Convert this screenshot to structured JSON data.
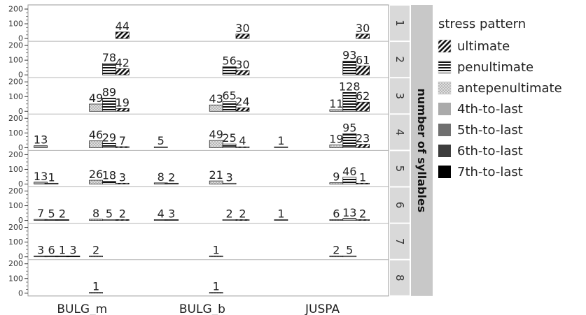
{
  "chart_data": {
    "type": "bar",
    "stacking": "none",
    "facet_columns": [
      "BULG_m",
      "BULG_b",
      "JUSPA"
    ],
    "facet_rows": [
      "1",
      "2",
      "3",
      "4",
      "5",
      "6",
      "7",
      "8"
    ],
    "facet_row_title": "number of syllables",
    "y_ticks": [
      "0",
      "100",
      "200"
    ],
    "ylim": [
      0,
      200
    ],
    "legend": {
      "title": "stress pattern",
      "position": "right",
      "entries": [
        {
          "key": "ultimate",
          "label": "ultimate",
          "fill": "diagonal-hatch"
        },
        {
          "key": "penultimate",
          "label": "penultimate",
          "fill": "horizontal-stripes"
        },
        {
          "key": "antepenultimate",
          "label": "antepenultimate",
          "fill": "dots"
        },
        {
          "key": "4th",
          "label": "4th-to-last",
          "fill": "#aaaaaa"
        },
        {
          "key": "5th",
          "label": "5th-to-last",
          "fill": "#6f6f6f"
        },
        {
          "key": "6th",
          "label": "6th-to-last",
          "fill": "#3d3d3d"
        },
        {
          "key": "7th",
          "label": "7th-to-last",
          "fill": "#000000"
        }
      ]
    },
    "bars": [
      {
        "col": "BULG_m",
        "row": "1",
        "pattern": "ultimate",
        "value": 44
      },
      {
        "col": "BULG_b",
        "row": "1",
        "pattern": "ultimate",
        "value": 30
      },
      {
        "col": "JUSPA",
        "row": "1",
        "pattern": "ultimate",
        "value": 30
      },
      {
        "col": "BULG_m",
        "row": "2",
        "pattern": "penultimate",
        "value": 78
      },
      {
        "col": "BULG_m",
        "row": "2",
        "pattern": "ultimate",
        "value": 42
      },
      {
        "col": "BULG_b",
        "row": "2",
        "pattern": "penultimate",
        "value": 56
      },
      {
        "col": "BULG_b",
        "row": "2",
        "pattern": "ultimate",
        "value": 30
      },
      {
        "col": "JUSPA",
        "row": "2",
        "pattern": "penultimate",
        "value": 93
      },
      {
        "col": "JUSPA",
        "row": "2",
        "pattern": "ultimate",
        "value": 61
      },
      {
        "col": "BULG_m",
        "row": "3",
        "pattern": "antepenultimate",
        "value": 49
      },
      {
        "col": "BULG_m",
        "row": "3",
        "pattern": "penultimate",
        "value": 89
      },
      {
        "col": "BULG_m",
        "row": "3",
        "pattern": "ultimate",
        "value": 19
      },
      {
        "col": "BULG_b",
        "row": "3",
        "pattern": "antepenultimate",
        "value": 43
      },
      {
        "col": "BULG_b",
        "row": "3",
        "pattern": "penultimate",
        "value": 65
      },
      {
        "col": "BULG_b",
        "row": "3",
        "pattern": "ultimate",
        "value": 24
      },
      {
        "col": "JUSPA",
        "row": "3",
        "pattern": "antepenultimate",
        "value": 11
      },
      {
        "col": "JUSPA",
        "row": "3",
        "pattern": "penultimate",
        "value": 128
      },
      {
        "col": "JUSPA",
        "row": "3",
        "pattern": "ultimate",
        "value": 62
      },
      {
        "col": "BULG_m",
        "row": "4",
        "pattern": "4th",
        "value": 13
      },
      {
        "col": "BULG_m",
        "row": "4",
        "pattern": "antepenultimate",
        "value": 46
      },
      {
        "col": "BULG_m",
        "row": "4",
        "pattern": "penultimate",
        "value": 29
      },
      {
        "col": "BULG_m",
        "row": "4",
        "pattern": "ultimate",
        "value": 7
      },
      {
        "col": "BULG_b",
        "row": "4",
        "pattern": "4th",
        "value": 5
      },
      {
        "col": "BULG_b",
        "row": "4",
        "pattern": "antepenultimate",
        "value": 49
      },
      {
        "col": "BULG_b",
        "row": "4",
        "pattern": "penultimate",
        "value": 25
      },
      {
        "col": "BULG_b",
        "row": "4",
        "pattern": "ultimate",
        "value": 4
      },
      {
        "col": "JUSPA",
        "row": "4",
        "pattern": "4th",
        "value": 1
      },
      {
        "col": "JUSPA",
        "row": "4",
        "pattern": "antepenultimate",
        "value": 19
      },
      {
        "col": "JUSPA",
        "row": "4",
        "pattern": "penultimate",
        "value": 95
      },
      {
        "col": "JUSPA",
        "row": "4",
        "pattern": "ultimate",
        "value": 23
      },
      {
        "col": "BULG_m",
        "row": "5",
        "pattern": "4th",
        "value": 13
      },
      {
        "col": "BULG_m",
        "row": "5",
        "pattern": "5th",
        "value": 1
      },
      {
        "col": "BULG_m",
        "row": "5",
        "pattern": "antepenultimate",
        "value": 26
      },
      {
        "col": "BULG_m",
        "row": "5",
        "pattern": "penultimate",
        "value": 18
      },
      {
        "col": "BULG_m",
        "row": "5",
        "pattern": "ultimate",
        "value": 3
      },
      {
        "col": "BULG_b",
        "row": "5",
        "pattern": "4th",
        "value": 8
      },
      {
        "col": "BULG_b",
        "row": "5",
        "pattern": "5th",
        "value": 2
      },
      {
        "col": "BULG_b",
        "row": "5",
        "pattern": "antepenultimate",
        "value": 21
      },
      {
        "col": "BULG_b",
        "row": "5",
        "pattern": "penultimate",
        "value": 3
      },
      {
        "col": "JUSPA",
        "row": "5",
        "pattern": "antepenultimate",
        "value": 9
      },
      {
        "col": "JUSPA",
        "row": "5",
        "pattern": "penultimate",
        "value": 46
      },
      {
        "col": "JUSPA",
        "row": "5",
        "pattern": "ultimate",
        "value": 1
      },
      {
        "col": "BULG_m",
        "row": "6",
        "pattern": "4th",
        "value": 7
      },
      {
        "col": "BULG_m",
        "row": "6",
        "pattern": "5th",
        "value": 5
      },
      {
        "col": "BULG_m",
        "row": "6",
        "pattern": "6th",
        "value": 2
      },
      {
        "col": "BULG_m",
        "row": "6",
        "pattern": "antepenultimate",
        "value": 8
      },
      {
        "col": "BULG_m",
        "row": "6",
        "pattern": "penultimate",
        "value": 5
      },
      {
        "col": "BULG_m",
        "row": "6",
        "pattern": "ultimate",
        "value": 2
      },
      {
        "col": "BULG_b",
        "row": "6",
        "pattern": "4th",
        "value": 4
      },
      {
        "col": "BULG_b",
        "row": "6",
        "pattern": "5th",
        "value": 3
      },
      {
        "col": "BULG_b",
        "row": "6",
        "pattern": "penultimate",
        "value": 2
      },
      {
        "col": "BULG_b",
        "row": "6",
        "pattern": "ultimate",
        "value": 2
      },
      {
        "col": "JUSPA",
        "row": "6",
        "pattern": "4th",
        "value": 1
      },
      {
        "col": "JUSPA",
        "row": "6",
        "pattern": "antepenultimate",
        "value": 6
      },
      {
        "col": "JUSPA",
        "row": "6",
        "pattern": "penultimate",
        "value": 13
      },
      {
        "col": "JUSPA",
        "row": "6",
        "pattern": "ultimate",
        "value": 2
      },
      {
        "col": "BULG_m",
        "row": "7",
        "pattern": "4th",
        "value": 3
      },
      {
        "col": "BULG_m",
        "row": "7",
        "pattern": "5th",
        "value": 6
      },
      {
        "col": "BULG_m",
        "row": "7",
        "pattern": "6th",
        "value": 1
      },
      {
        "col": "BULG_m",
        "row": "7",
        "pattern": "7th",
        "value": 3
      },
      {
        "col": "BULG_m",
        "row": "7",
        "pattern": "antepenultimate",
        "value": 2
      },
      {
        "col": "BULG_b",
        "row": "7",
        "pattern": "antepenultimate",
        "value": 1
      },
      {
        "col": "JUSPA",
        "row": "7",
        "pattern": "antepenultimate",
        "value": 2
      },
      {
        "col": "JUSPA",
        "row": "7",
        "pattern": "penultimate",
        "value": 5
      },
      {
        "col": "BULG_m",
        "row": "8",
        "pattern": "antepenultimate",
        "value": 1
      },
      {
        "col": "BULG_b",
        "row": "8",
        "pattern": "antepenultimate",
        "value": 1
      }
    ]
  }
}
